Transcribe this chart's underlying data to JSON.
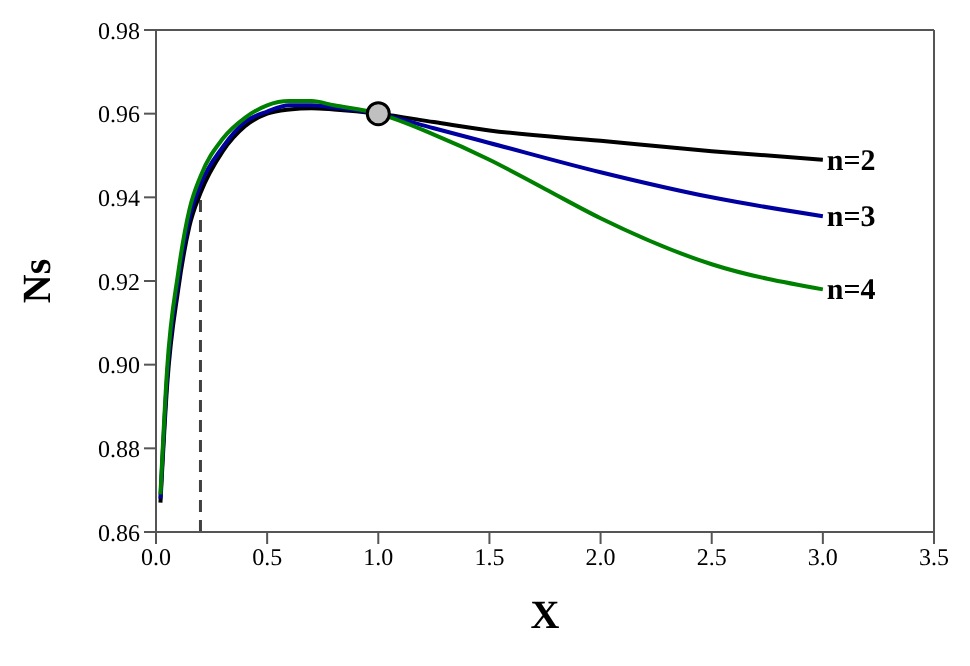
{
  "chart_data": {
    "type": "line",
    "xlabel": "X",
    "ylabel": "Ns",
    "xlim": [
      0,
      3.5
    ],
    "xticks": [
      {
        "value": 0,
        "label": "0.0"
      },
      {
        "value": 0.5,
        "label": "0.5"
      },
      {
        "value": 1,
        "label": "1.0"
      },
      {
        "value": 1.5,
        "label": "1.5"
      },
      {
        "value": 2,
        "label": "2.0"
      },
      {
        "value": 2.5,
        "label": "2.5"
      },
      {
        "value": 3,
        "label": "3.0"
      },
      {
        "value": 3.5,
        "label": "3.5"
      }
    ],
    "ylim": [
      0.86,
      0.98
    ],
    "yticks": [
      0.86,
      0.88,
      {
        "value": 0.9,
        "label": "0.90"
      },
      0.92,
      0.94,
      0.96,
      0.98
    ],
    "grid": false,
    "legend": false,
    "marker": "none",
    "line_style": "solid",
    "ref_lines": [
      {
        "axis": "x",
        "value": 0.2,
        "line_style": "dashed",
        "color": "#404040"
      }
    ],
    "series": [
      {
        "name": "n=2",
        "color": "#000000",
        "x": [
          0.02,
          0.05,
          0.1,
          0.15,
          0.2,
          0.3,
          0.4,
          0.5,
          0.6,
          0.7,
          0.8,
          1.0,
          1.25,
          1.5,
          2.0,
          2.5,
          3.0
        ],
        "values": [
          0.867,
          0.895,
          0.918,
          0.933,
          0.941,
          0.951,
          0.957,
          0.96,
          0.961,
          0.9613,
          0.961,
          0.96,
          0.958,
          0.956,
          0.9535,
          0.951,
          0.949
        ]
      },
      {
        "name": "n=3",
        "color": "#0000a0",
        "x": [
          0.02,
          0.05,
          0.1,
          0.15,
          0.2,
          0.3,
          0.4,
          0.5,
          0.6,
          0.7,
          0.8,
          1.0,
          1.25,
          1.5,
          2.0,
          2.5,
          3.0
        ],
        "values": [
          0.868,
          0.897,
          0.92,
          0.935,
          0.943,
          0.952,
          0.958,
          0.9605,
          0.962,
          0.962,
          0.9615,
          0.96,
          0.9565,
          0.953,
          0.946,
          0.94,
          0.9355
        ]
      },
      {
        "name": "n=4",
        "color": "#008000",
        "x": [
          0.02,
          0.05,
          0.1,
          0.15,
          0.2,
          0.3,
          0.4,
          0.5,
          0.6,
          0.7,
          0.8,
          1.0,
          1.25,
          1.5,
          1.75,
          2.0,
          2.5,
          3.0
        ],
        "values": [
          0.869,
          0.899,
          0.922,
          0.937,
          0.945,
          0.954,
          0.959,
          0.962,
          0.963,
          0.963,
          0.962,
          0.96,
          0.955,
          0.949,
          0.942,
          0.935,
          0.924,
          0.918
        ]
      },
      {
        "type": "scatter",
        "marker": "circle",
        "color": "#c0c0c0",
        "x": [
          1.0
        ],
        "values": [
          0.96
        ]
      }
    ]
  }
}
